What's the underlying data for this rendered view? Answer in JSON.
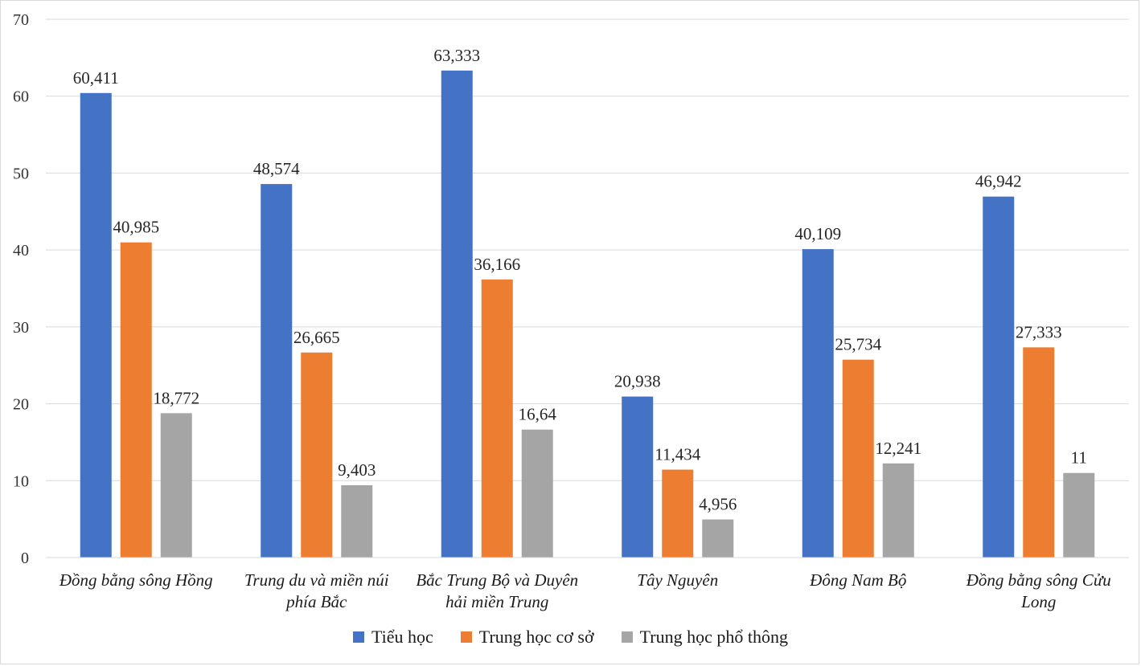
{
  "chart_data": {
    "type": "bar",
    "categories": [
      "Đồng bằng sông Hồng",
      "Trung du và miền núi phía Bắc",
      "Bắc Trung Bộ và Duyên hải miền Trung",
      "Tây Nguyên",
      "Đông Nam Bộ",
      "Đồng bằng sông Cửu Long"
    ],
    "series": [
      {
        "name": "Tiểu học",
        "color": "#4472c4",
        "values": [
          60.411,
          48.574,
          63.333,
          20.938,
          40.109,
          46.942
        ],
        "labels": [
          "60,411",
          "48,574",
          "63,333",
          "20,938",
          "40,109",
          "46,942"
        ]
      },
      {
        "name": "Trung học cơ sở",
        "color": "#ed7d31",
        "values": [
          40.985,
          26.665,
          36.166,
          11.434,
          25.734,
          27.333
        ],
        "labels": [
          "40,985",
          "26,665",
          "36,166",
          "11,434",
          "25,734",
          "27,333"
        ]
      },
      {
        "name": "Trung học phổ thông",
        "color": "#a5a5a5",
        "values": [
          18.772,
          9.403,
          16.64,
          4.956,
          12.241,
          11
        ],
        "labels": [
          "18,772",
          "9,403",
          "16,64",
          "4,956",
          "12,241",
          "11"
        ]
      }
    ],
    "y_ticks": [
      "0",
      "10",
      "20",
      "30",
      "40",
      "50",
      "60",
      "70"
    ],
    "ylim": [
      0,
      70
    ],
    "grid": true,
    "legend": "bottom"
  }
}
